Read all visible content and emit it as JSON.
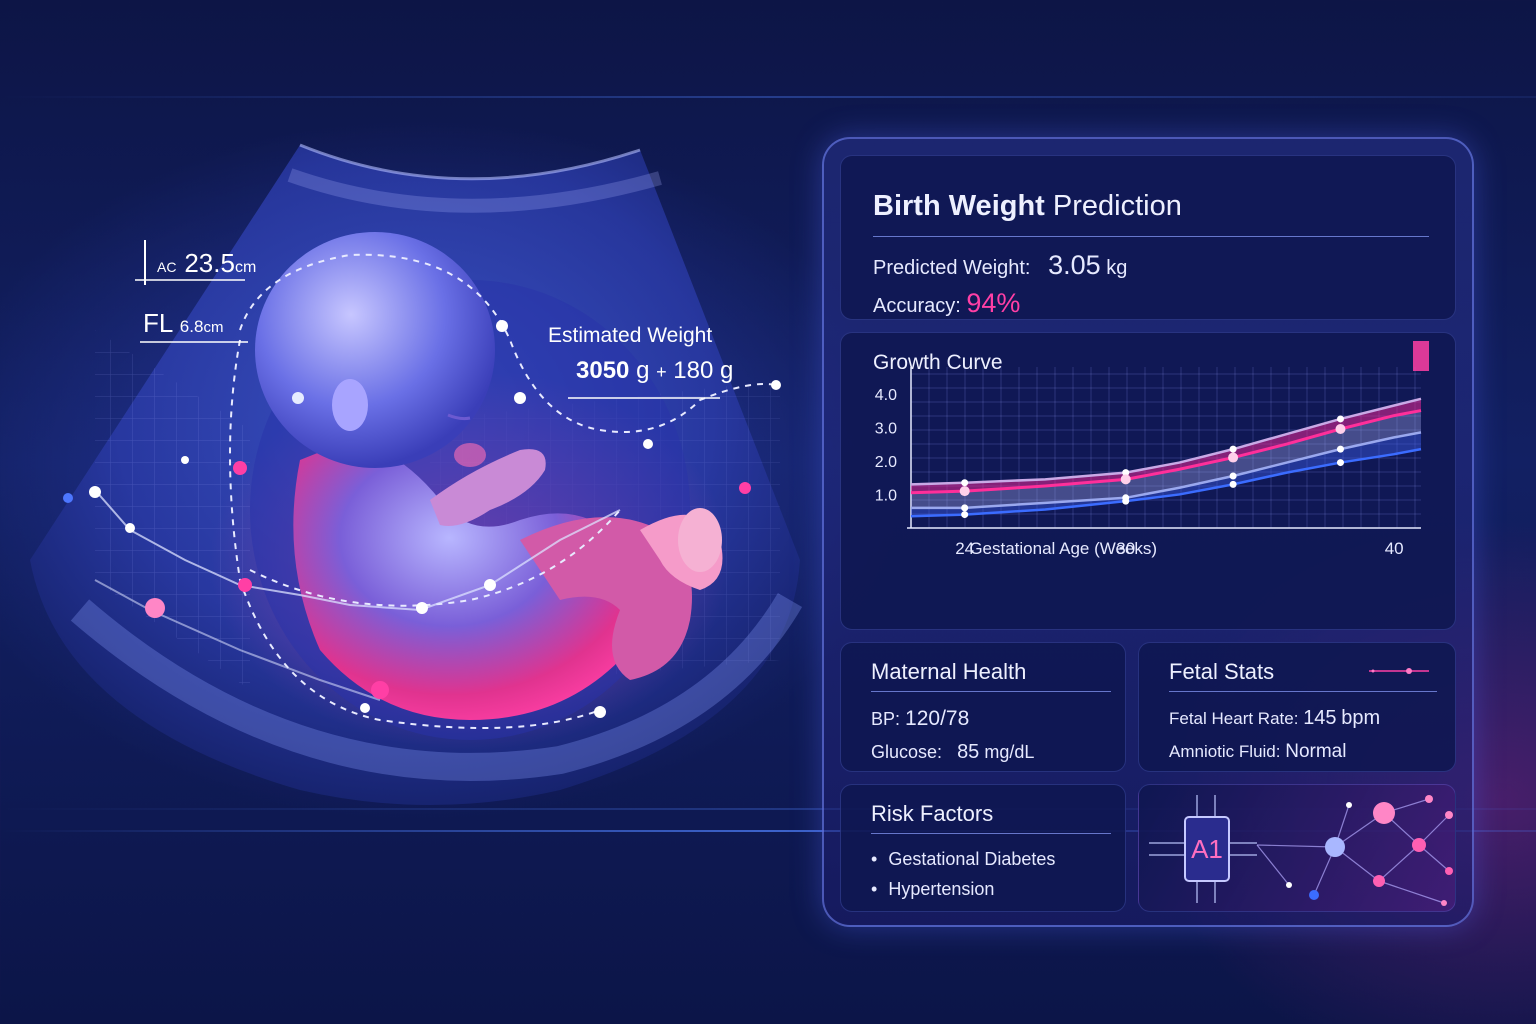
{
  "scan": {
    "ac_label": "AC",
    "ac_value": "23.5",
    "ac_unit": "cm",
    "fl_label": "FL",
    "fl_value": "6.8",
    "fl_unit": "cm",
    "est_label": "Estimated Weight",
    "est_value": "3050",
    "est_unit1": "g",
    "est_pm": "+",
    "est_margin": "180",
    "est_unit2": "g"
  },
  "prediction": {
    "title_bold": "Birth Weight",
    "title_rest": "Prediction",
    "weight_label": "Predicted Weight:",
    "weight_value": "3.05",
    "weight_unit": "kg",
    "accuracy_label": "Accuracy:",
    "accuracy_value": "94%"
  },
  "growth": {
    "title": "Growth Curve",
    "xlabel": "Gestational Age (Weeks)",
    "yticks": [
      "4.0",
      "3.0",
      "2.0",
      "1.0"
    ],
    "xticks": [
      "24",
      "30",
      "40"
    ]
  },
  "chart_data": {
    "type": "line",
    "title": "Growth Curve",
    "xlabel": "Gestational Age (Weeks)",
    "ylabel": "",
    "ylim": [
      0,
      4.5
    ],
    "x_ticks": [
      24,
      30,
      40
    ],
    "y_ticks": [
      1.0,
      2.0,
      3.0,
      4.0
    ],
    "series": [
      {
        "values_x": [
          22,
          24,
          27,
          30,
          32,
          34,
          36,
          38,
          40,
          41
        ],
        "values_y": [
          1.3,
          1.35,
          1.45,
          1.65,
          1.95,
          2.35,
          2.8,
          3.25,
          3.65,
          3.85
        ]
      },
      {
        "values_x": [
          22,
          24,
          27,
          30,
          32,
          34,
          36,
          38,
          40,
          41
        ],
        "values_y": [
          1.05,
          1.1,
          1.25,
          1.45,
          1.75,
          2.1,
          2.5,
          2.95,
          3.35,
          3.5
        ]
      },
      {
        "values_x": [
          22,
          24,
          27,
          30,
          32,
          34,
          36,
          38,
          40,
          41
        ],
        "values_y": [
          0.6,
          0.6,
          0.75,
          0.9,
          1.2,
          1.55,
          1.95,
          2.35,
          2.7,
          2.85
        ]
      },
      {
        "values_x": [
          22,
          24,
          27,
          30,
          32,
          34,
          36,
          38,
          40,
          41
        ],
        "values_y": [
          0.35,
          0.4,
          0.55,
          0.8,
          1.0,
          1.3,
          1.65,
          1.95,
          2.2,
          2.35
        ]
      }
    ],
    "grid": true,
    "colors": [
      "#c9a9e6",
      "#ff2f9a",
      "#9aa8ee",
      "#3b6cff"
    ]
  },
  "maternal": {
    "title": "Maternal Health",
    "bp_label": "BP:",
    "bp_value": "120/78",
    "glucose_label": "Glucose:",
    "glucose_value": "85",
    "glucose_unit": "mg/dL"
  },
  "fetal": {
    "title": "Fetal Stats",
    "hr_label": "Fetal Heart Rate:",
    "hr_value": "145",
    "hr_unit": "bpm",
    "fluid_label": "Amniotic Fluid:",
    "fluid_value": "Normal"
  },
  "risk": {
    "title": "Risk Factors",
    "items": [
      "Gestational Diabetes",
      "Hypertension"
    ]
  },
  "ai": {
    "chip_label": "A1",
    "icon": "ai-chip-icon"
  },
  "colors": {
    "accent_pink": "#ff3fa5",
    "accent_blue": "#3b6cff",
    "panel_border": "#7888ff"
  }
}
